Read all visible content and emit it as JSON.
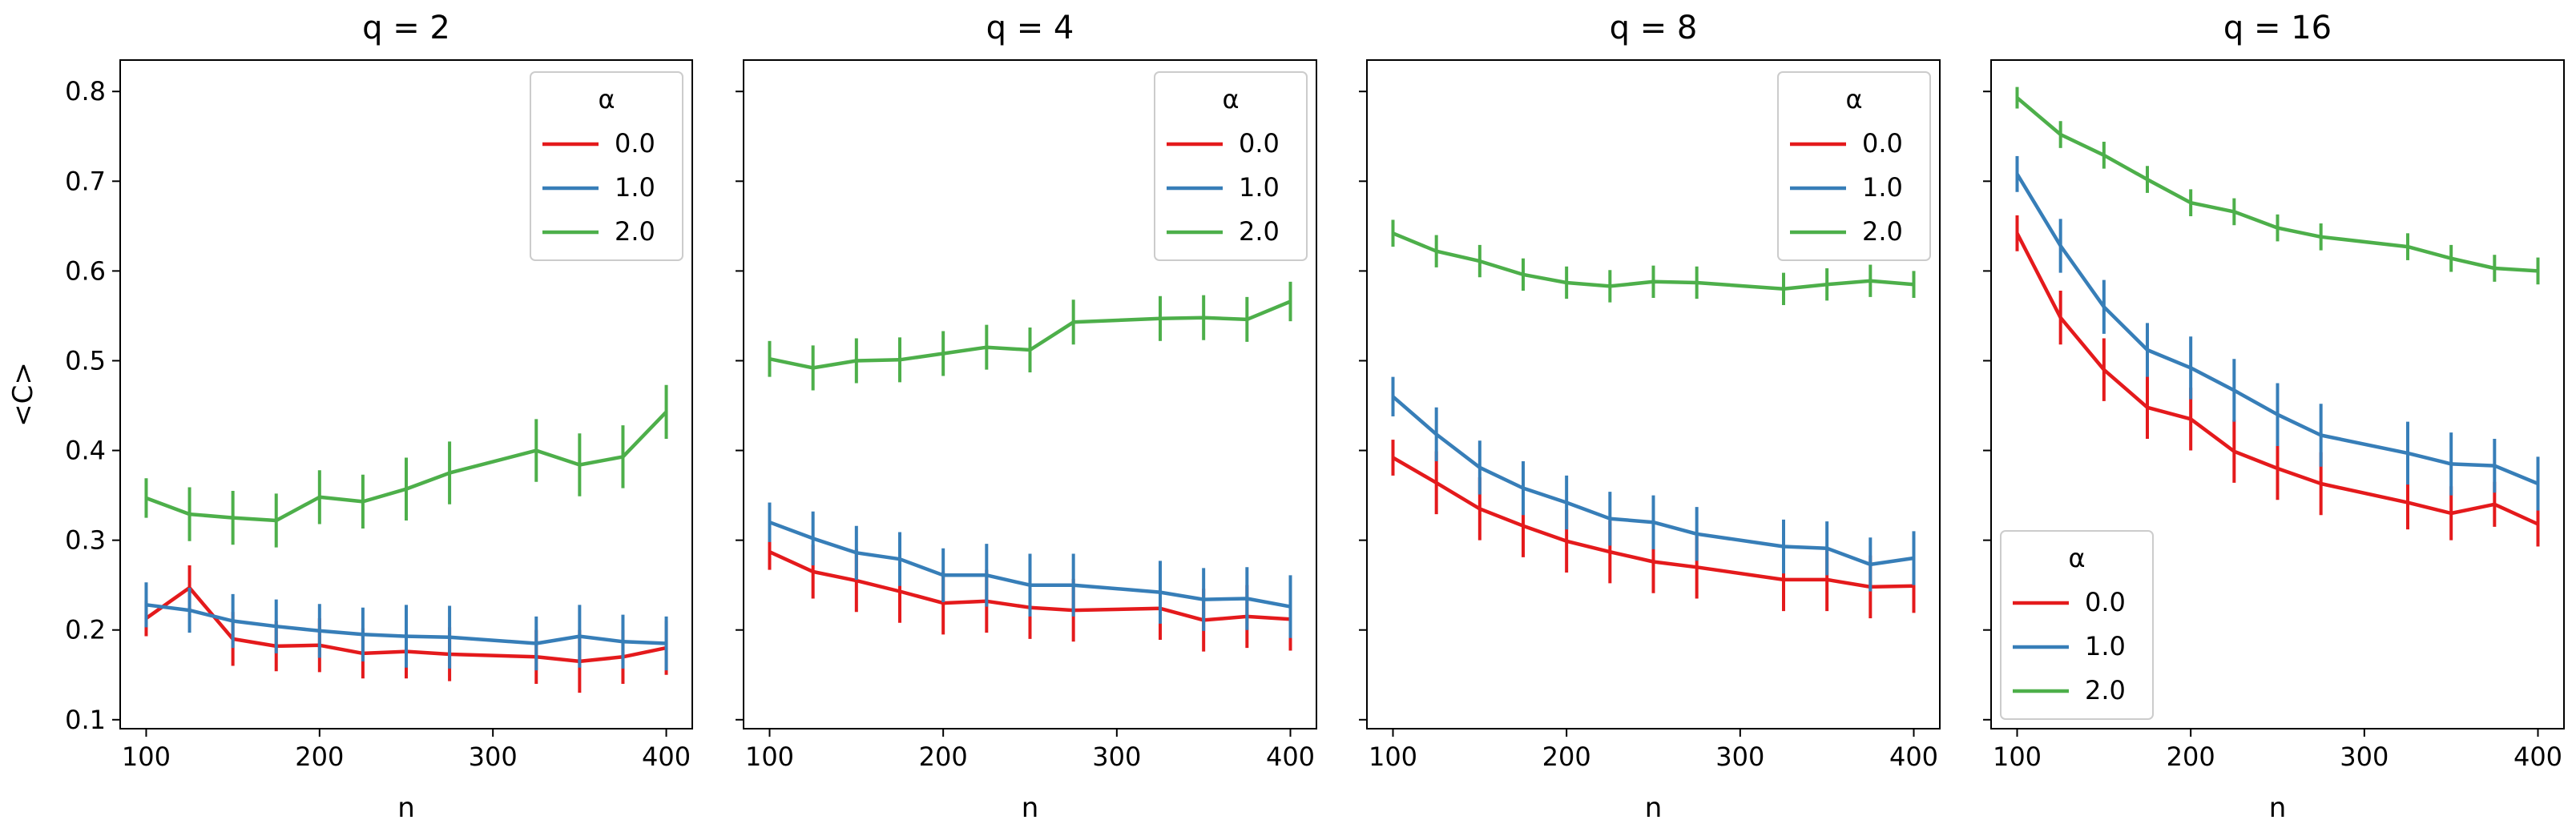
{
  "chart_data": [
    {
      "type": "line",
      "title": "q = 2",
      "xlabel": "n",
      "ylabel": "<C>",
      "xlim": [
        85,
        415
      ],
      "ylim": [
        0.09,
        0.835
      ],
      "xticks": [
        100,
        200,
        300,
        400
      ],
      "yticks": [
        0.1,
        0.2,
        0.3,
        0.4,
        0.5,
        0.6,
        0.7,
        0.8
      ],
      "legend": {
        "title": "α",
        "position": "upper right"
      },
      "series": [
        {
          "name": "0.0",
          "color": "#e41a1c",
          "x": [
            100,
            125,
            150,
            175,
            200,
            225,
            250,
            275,
            325,
            350,
            375,
            400
          ],
          "y": [
            0.213,
            0.247,
            0.19,
            0.182,
            0.183,
            0.174,
            0.176,
            0.173,
            0.17,
            0.165,
            0.17,
            0.18
          ],
          "err": [
            0.02,
            0.025,
            0.03,
            0.028,
            0.03,
            0.028,
            0.03,
            0.03,
            0.03,
            0.035,
            0.03,
            0.03
          ]
        },
        {
          "name": "1.0",
          "color": "#377eb8",
          "x": [
            100,
            125,
            150,
            175,
            200,
            225,
            250,
            275,
            325,
            350,
            375,
            400
          ],
          "y": [
            0.228,
            0.222,
            0.21,
            0.204,
            0.199,
            0.195,
            0.193,
            0.192,
            0.185,
            0.193,
            0.187,
            0.185
          ],
          "err": [
            0.025,
            0.025,
            0.03,
            0.03,
            0.03,
            0.03,
            0.035,
            0.035,
            0.03,
            0.035,
            0.03,
            0.03
          ]
        },
        {
          "name": "2.0",
          "color": "#4daf4a",
          "x": [
            100,
            125,
            150,
            175,
            200,
            225,
            250,
            275,
            325,
            350,
            375,
            400
          ],
          "y": [
            0.347,
            0.329,
            0.325,
            0.322,
            0.348,
            0.343,
            0.357,
            0.375,
            0.4,
            0.384,
            0.393,
            0.443
          ],
          "err": [
            0.022,
            0.03,
            0.03,
            0.03,
            0.03,
            0.03,
            0.035,
            0.035,
            0.035,
            0.035,
            0.035,
            0.03
          ]
        }
      ]
    },
    {
      "type": "line",
      "title": "q = 4",
      "xlabel": "n",
      "ylabel": "",
      "xlim": [
        85,
        415
      ],
      "ylim": [
        0.09,
        0.835
      ],
      "xticks": [
        100,
        200,
        300,
        400
      ],
      "yticks": [
        0.1,
        0.2,
        0.3,
        0.4,
        0.5,
        0.6,
        0.7,
        0.8
      ],
      "legend": {
        "title": "α",
        "position": "upper right"
      },
      "series": [
        {
          "name": "0.0",
          "color": "#e41a1c",
          "x": [
            100,
            125,
            150,
            175,
            200,
            225,
            250,
            275,
            325,
            350,
            375,
            400
          ],
          "y": [
            0.287,
            0.265,
            0.255,
            0.243,
            0.23,
            0.232,
            0.225,
            0.222,
            0.224,
            0.211,
            0.215,
            0.212
          ],
          "err": [
            0.02,
            0.03,
            0.035,
            0.035,
            0.035,
            0.035,
            0.035,
            0.035,
            0.035,
            0.035,
            0.035,
            0.035
          ]
        },
        {
          "name": "1.0",
          "color": "#377eb8",
          "x": [
            100,
            125,
            150,
            175,
            200,
            225,
            250,
            275,
            325,
            350,
            375,
            400
          ],
          "y": [
            0.32,
            0.302,
            0.286,
            0.279,
            0.261,
            0.261,
            0.25,
            0.25,
            0.242,
            0.234,
            0.235,
            0.226
          ],
          "err": [
            0.022,
            0.03,
            0.03,
            0.03,
            0.03,
            0.035,
            0.035,
            0.035,
            0.035,
            0.035,
            0.035,
            0.035
          ]
        },
        {
          "name": "2.0",
          "color": "#4daf4a",
          "x": [
            100,
            125,
            150,
            175,
            200,
            225,
            250,
            275,
            325,
            350,
            375,
            400
          ],
          "y": [
            0.502,
            0.492,
            0.5,
            0.501,
            0.508,
            0.515,
            0.512,
            0.543,
            0.547,
            0.548,
            0.546,
            0.566
          ],
          "err": [
            0.02,
            0.025,
            0.025,
            0.025,
            0.025,
            0.025,
            0.025,
            0.025,
            0.025,
            0.025,
            0.025,
            0.022
          ]
        }
      ]
    },
    {
      "type": "line",
      "title": "q = 8",
      "xlabel": "n",
      "ylabel": "",
      "xlim": [
        85,
        415
      ],
      "ylim": [
        0.09,
        0.835
      ],
      "xticks": [
        100,
        200,
        300,
        400
      ],
      "yticks": [
        0.1,
        0.2,
        0.3,
        0.4,
        0.5,
        0.6,
        0.7,
        0.8
      ],
      "legend": {
        "title": "α",
        "position": "upper right"
      },
      "series": [
        {
          "name": "0.0",
          "color": "#e41a1c",
          "x": [
            100,
            125,
            150,
            175,
            200,
            225,
            250,
            275,
            325,
            350,
            375,
            400
          ],
          "y": [
            0.392,
            0.364,
            0.335,
            0.316,
            0.299,
            0.287,
            0.276,
            0.27,
            0.256,
            0.256,
            0.248,
            0.249
          ],
          "err": [
            0.02,
            0.035,
            0.035,
            0.035,
            0.035,
            0.035,
            0.035,
            0.035,
            0.035,
            0.035,
            0.035,
            0.03
          ]
        },
        {
          "name": "1.0",
          "color": "#377eb8",
          "x": [
            100,
            125,
            150,
            175,
            200,
            225,
            250,
            275,
            325,
            350,
            375,
            400
          ],
          "y": [
            0.46,
            0.418,
            0.381,
            0.358,
            0.342,
            0.324,
            0.32,
            0.307,
            0.293,
            0.291,
            0.273,
            0.28
          ],
          "err": [
            0.022,
            0.03,
            0.03,
            0.03,
            0.03,
            0.03,
            0.03,
            0.03,
            0.03,
            0.03,
            0.03,
            0.03
          ]
        },
        {
          "name": "2.0",
          "color": "#4daf4a",
          "x": [
            100,
            125,
            150,
            175,
            200,
            225,
            250,
            275,
            325,
            350,
            375,
            400
          ],
          "y": [
            0.642,
            0.622,
            0.611,
            0.596,
            0.587,
            0.583,
            0.588,
            0.587,
            0.58,
            0.585,
            0.589,
            0.585
          ],
          "err": [
            0.015,
            0.018,
            0.018,
            0.018,
            0.018,
            0.018,
            0.018,
            0.018,
            0.018,
            0.018,
            0.018,
            0.015
          ]
        }
      ]
    },
    {
      "type": "line",
      "title": "q = 16",
      "xlabel": "n",
      "ylabel": "",
      "xlim": [
        85,
        415
      ],
      "ylim": [
        0.09,
        0.835
      ],
      "xticks": [
        100,
        200,
        300,
        400
      ],
      "yticks": [
        0.1,
        0.2,
        0.3,
        0.4,
        0.5,
        0.6,
        0.7,
        0.8
      ],
      "legend": {
        "title": "α",
        "position": "lower left"
      },
      "series": [
        {
          "name": "0.0",
          "color": "#e41a1c",
          "x": [
            100,
            125,
            150,
            175,
            200,
            225,
            250,
            275,
            325,
            350,
            375,
            400
          ],
          "y": [
            0.642,
            0.548,
            0.49,
            0.448,
            0.435,
            0.399,
            0.38,
            0.363,
            0.342,
            0.33,
            0.34,
            0.318
          ],
          "err": [
            0.02,
            0.03,
            0.035,
            0.035,
            0.035,
            0.035,
            0.035,
            0.035,
            0.03,
            0.03,
            0.025,
            0.025
          ]
        },
        {
          "name": "1.0",
          "color": "#377eb8",
          "x": [
            100,
            125,
            150,
            175,
            200,
            225,
            250,
            275,
            325,
            350,
            375,
            400
          ],
          "y": [
            0.708,
            0.628,
            0.56,
            0.512,
            0.492,
            0.467,
            0.44,
            0.417,
            0.397,
            0.385,
            0.383,
            0.363
          ],
          "err": [
            0.02,
            0.03,
            0.03,
            0.03,
            0.035,
            0.035,
            0.035,
            0.035,
            0.035,
            0.035,
            0.03,
            0.03
          ]
        },
        {
          "name": "2.0",
          "color": "#4daf4a",
          "x": [
            100,
            125,
            150,
            175,
            200,
            225,
            250,
            275,
            325,
            350,
            375,
            400
          ],
          "y": [
            0.793,
            0.752,
            0.729,
            0.702,
            0.676,
            0.666,
            0.648,
            0.638,
            0.627,
            0.614,
            0.603,
            0.6
          ],
          "err": [
            0.012,
            0.015,
            0.015,
            0.015,
            0.015,
            0.015,
            0.015,
            0.015,
            0.015,
            0.015,
            0.015,
            0.015
          ]
        }
      ]
    }
  ]
}
